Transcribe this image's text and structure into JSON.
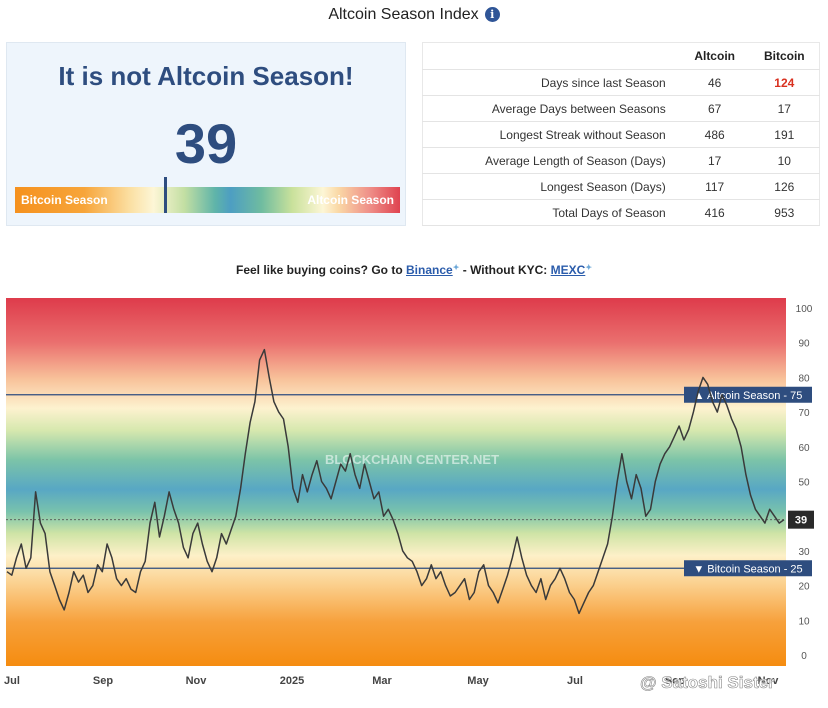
{
  "page_title": "Altcoin Season Index",
  "index_card": {
    "headline": "It is not Altcoin Season!",
    "value": "39",
    "value_number": 39,
    "left_label": "Bitcoin Season",
    "right_label": "Altcoin Season"
  },
  "stats_table": {
    "headers": [
      "",
      "Altcoin",
      "Bitcoin"
    ],
    "rows": [
      {
        "label": "Days since last Season",
        "altcoin": "46",
        "bitcoin": "124",
        "bitcoin_highlight": true
      },
      {
        "label": "Average Days between Seasons",
        "altcoin": "67",
        "bitcoin": "17"
      },
      {
        "label": "Longest Streak without Season",
        "altcoin": "486",
        "bitcoin": "191"
      },
      {
        "label": "Average Length of Season (Days)",
        "altcoin": "17",
        "bitcoin": "10"
      },
      {
        "label": "Longest Season (Days)",
        "altcoin": "117",
        "bitcoin": "126"
      },
      {
        "label": "Total Days of Season",
        "altcoin": "416",
        "bitcoin": "953"
      }
    ]
  },
  "promo": {
    "prefix": "Feel like buying coins? Go to",
    "link1": "Binance",
    "middle": "- Without KYC:",
    "link2": "MEXC"
  },
  "colors": {
    "title_blue": "#2e4d7f",
    "line": "#3a3a3a",
    "threshold_line": "#2e4d7f",
    "highlight_red": "#d9301f"
  },
  "chart_data": {
    "type": "line",
    "series": [
      {
        "values": [
          24,
          23,
          28,
          32,
          25,
          28,
          47,
          38,
          35,
          24,
          20,
          16,
          13,
          18,
          24,
          21,
          23,
          18,
          20,
          26,
          24,
          32,
          28,
          22,
          20,
          22,
          19,
          18,
          24,
          27,
          38,
          44,
          34,
          40,
          47,
          42,
          38,
          31,
          28,
          35,
          38,
          32,
          27,
          24,
          28,
          35,
          32,
          36,
          40,
          48,
          58,
          67,
          73,
          85,
          88,
          80,
          73,
          70,
          68,
          60,
          48,
          44,
          52,
          47,
          52,
          56,
          50,
          48,
          45,
          50,
          55,
          53,
          58,
          52,
          48,
          55,
          50,
          45,
          47,
          40,
          42,
          39,
          35,
          30,
          28,
          27,
          24,
          20,
          22,
          26,
          22,
          24,
          20,
          17,
          18,
          20,
          22,
          16,
          18,
          24,
          26,
          20,
          18,
          15,
          19,
          23,
          28,
          34,
          28,
          23,
          20,
          18,
          22,
          16,
          20,
          22,
          25,
          22,
          18,
          16,
          12,
          15,
          18,
          20,
          24,
          28,
          32,
          40,
          50,
          58,
          50,
          45,
          52,
          48,
          40,
          42,
          50,
          55,
          58,
          60,
          63,
          66,
          62,
          65,
          70,
          76,
          80,
          78,
          73,
          70,
          75,
          72,
          68,
          65,
          60,
          52,
          46,
          42,
          40,
          38,
          42,
          40,
          38,
          39
        ]
      }
    ],
    "x_tick_labels": [
      "Jul",
      "Sep",
      "Nov",
      "2025",
      "Mar",
      "May",
      "Jul",
      "Sep",
      "Nov"
    ],
    "y_ticks": [
      0,
      10,
      20,
      30,
      40,
      50,
      60,
      70,
      80,
      90,
      100
    ],
    "ylim": [
      0,
      100
    ],
    "current_value": 39,
    "current_label": "39",
    "thresholds": [
      {
        "label": "▲ Altcoin Season - 75",
        "value": 75
      },
      {
        "label": "▼ Bitcoin Season - 25",
        "value": 25
      }
    ],
    "watermark": "BLOCKCHAIN CENTER.NET",
    "social_watermark": "@ Satoshi Sister"
  }
}
